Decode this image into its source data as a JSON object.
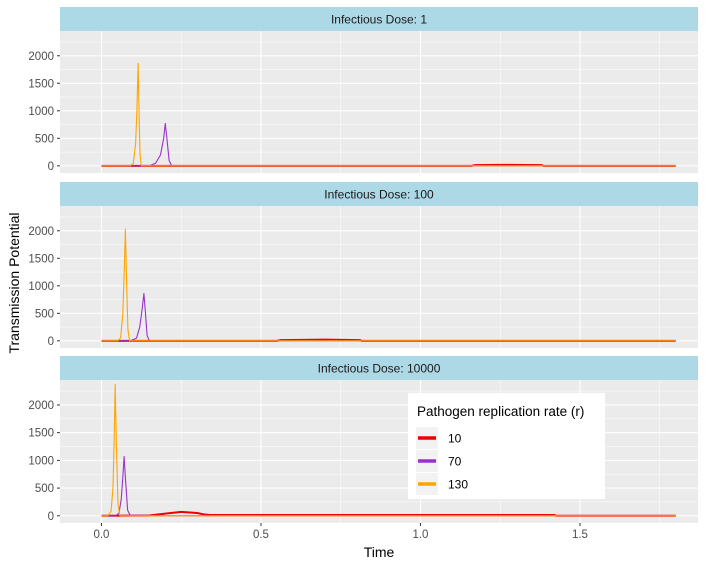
{
  "chart_data": {
    "type": "line",
    "xlabel": "Time",
    "ylabel": "Transmission Potential",
    "xlim": [
      -0.13,
      1.87
    ],
    "ylim": [
      -130,
      2450
    ],
    "x_ticks": [
      0.0,
      0.5,
      1.0,
      1.5
    ],
    "x_tick_labels": [
      "0.0",
      "0.5",
      "1.0",
      "1.5"
    ],
    "y_ticks": [
      0,
      500,
      1000,
      1500,
      2000
    ],
    "y_tick_labels": [
      "0",
      "500",
      "1000",
      "1500",
      "2000"
    ],
    "grid": true,
    "legend": {
      "title": "Pathogen replication rate (r)",
      "placement": "inside-bottom-right",
      "entries": [
        {
          "label": "10",
          "color": "#ee0000"
        },
        {
          "label": "70",
          "color": "#9932cc"
        },
        {
          "label": "130",
          "color": "#ffa500"
        }
      ]
    },
    "panels": [
      {
        "strip": "Infectious Dose: 1",
        "series": [
          {
            "name": "10",
            "color": "#ee0000",
            "x": [
              0.0,
              1.16,
              1.17,
              1.25,
              1.38,
              1.385,
              1.8
            ],
            "y": [
              0,
              0,
              12,
              18,
              12,
              0,
              0
            ]
          },
          {
            "name": "70",
            "color": "#9932cc",
            "x": [
              0.0,
              0.15,
              0.17,
              0.185,
              0.195,
              0.2,
              0.205,
              0.212,
              0.22,
              1.8
            ],
            "y": [
              0,
              0,
              50,
              200,
              500,
              770,
              500,
              100,
              0,
              0
            ]
          },
          {
            "name": "130",
            "color": "#ffa500",
            "x": [
              0.0,
              0.09,
              0.1,
              0.107,
              0.111,
              0.115,
              0.118,
              0.121,
              0.125,
              1.8
            ],
            "y": [
              0,
              0,
              50,
              400,
              1000,
              1860,
              900,
              200,
              0,
              0
            ]
          }
        ]
      },
      {
        "strip": "Infectious Dose: 100",
        "series": [
          {
            "name": "10",
            "color": "#ee0000",
            "x": [
              0.0,
              0.55,
              0.56,
              0.7,
              0.81,
              0.815,
              1.8
            ],
            "y": [
              0,
              0,
              12,
              22,
              14,
              0,
              0
            ]
          },
          {
            "name": "70",
            "color": "#9932cc",
            "x": [
              0.0,
              0.09,
              0.11,
              0.12,
              0.128,
              0.133,
              0.138,
              0.143,
              0.15,
              1.8
            ],
            "y": [
              0,
              0,
              50,
              250,
              600,
              860,
              500,
              100,
              0,
              0
            ]
          },
          {
            "name": "130",
            "color": "#ffa500",
            "x": [
              0.0,
              0.05,
              0.06,
              0.067,
              0.071,
              0.075,
              0.079,
              0.083,
              0.088,
              1.8
            ],
            "y": [
              0,
              0,
              50,
              500,
              1200,
              2030,
              1000,
              200,
              0,
              0
            ]
          }
        ]
      },
      {
        "strip": "Infectious Dose: 10000",
        "series": [
          {
            "name": "10",
            "color": "#ee0000",
            "x": [
              0.0,
              0.15,
              0.2,
              0.25,
              0.3,
              0.32,
              0.34,
              1.42,
              1.425,
              1.8
            ],
            "y": [
              0,
              5,
              40,
              70,
              50,
              25,
              15,
              15,
              0,
              0
            ]
          },
          {
            "name": "70",
            "color": "#9932cc",
            "x": [
              0.0,
              0.045,
              0.055,
              0.062,
              0.067,
              0.071,
              0.076,
              0.082,
              0.09,
              0.15,
              0.155,
              1.8
            ],
            "y": [
              0,
              0,
              50,
              300,
              700,
              1070,
              600,
              100,
              8,
              8,
              0,
              0
            ]
          },
          {
            "name": "130",
            "color": "#ffa500",
            "x": [
              0.0,
              0.02,
              0.03,
              0.036,
              0.04,
              0.043,
              0.047,
              0.052,
              0.058,
              1.8
            ],
            "y": [
              0,
              0,
              80,
              500,
              1400,
              2370,
              1200,
              200,
              0,
              0
            ]
          }
        ]
      }
    ]
  }
}
